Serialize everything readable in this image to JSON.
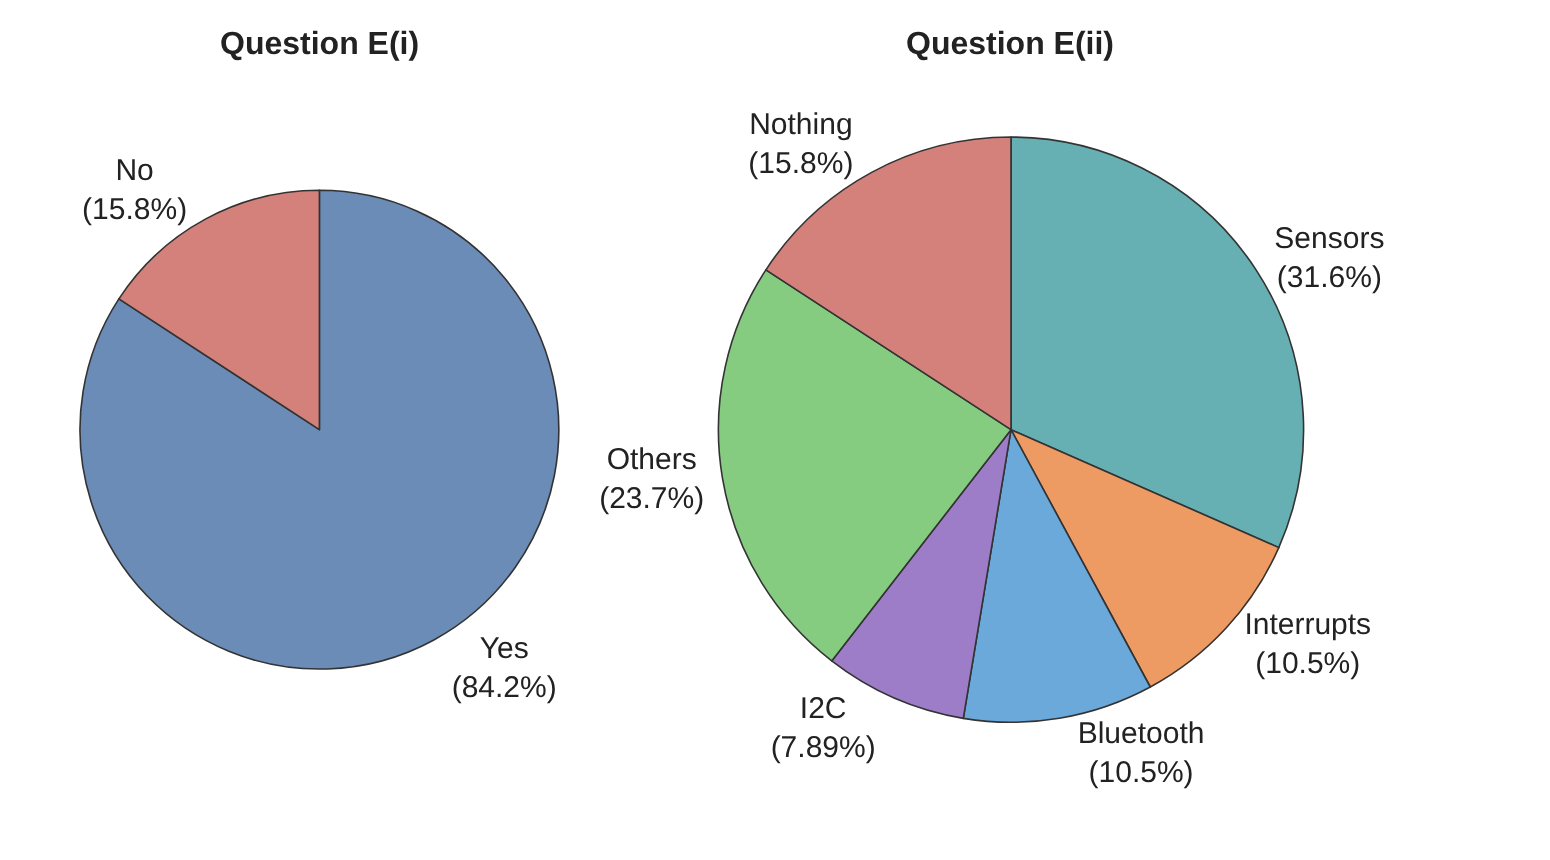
{
  "chart_data": [
    {
      "type": "pie",
      "title": "Question E(i)",
      "categories": [
        "Yes",
        "No"
      ],
      "values": [
        84.2,
        15.8
      ],
      "value_labels": [
        "(84.2%)",
        "(15.8%)"
      ],
      "colors": [
        "#6b8cb6",
        "#d4817b"
      ]
    },
    {
      "type": "pie",
      "title": "Question E(ii)",
      "categories": [
        "Sensors",
        "Interrupts",
        "Bluetooth",
        "I2C",
        "Others",
        "Nothing"
      ],
      "values": [
        31.6,
        10.5,
        10.5,
        7.89,
        23.7,
        15.8
      ],
      "value_labels": [
        "(31.6%)",
        "(10.5%)",
        "(10.5%)",
        "(7.89%)",
        "(23.7%)",
        "(15.8%)"
      ],
      "colors": [
        "#66afb2",
        "#ee9b63",
        "#6ba9db",
        "#9d7dc7",
        "#85cc81",
        "#d4817b"
      ]
    }
  ]
}
